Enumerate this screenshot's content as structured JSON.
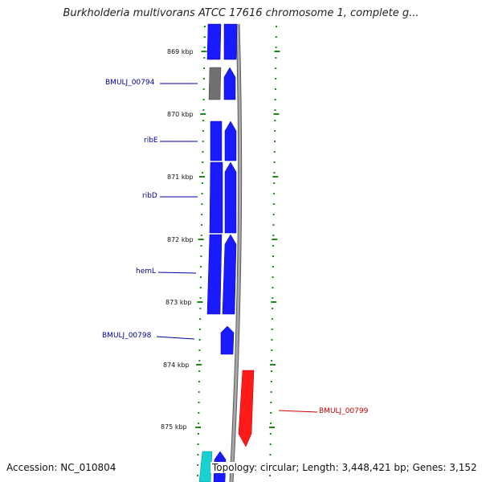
{
  "title": "Burkholderia multivorans ATCC 17616 chromosome 1, complete g...",
  "accession_text": "Accession: NC_010804",
  "summary_text": "Topology: circular; Length: 3,448,421 bp; Genes: 3,152",
  "colors": {
    "forward_gene": "#1a1aff",
    "reverse_gene": "#ff1a1a",
    "pseudo_gene": "#707070",
    "rna_gene": "#19d1d1",
    "forward_label": "#00009c",
    "reverse_label": "#c80000",
    "tick": "#1a8a1a",
    "backbone": "#8c8c8c"
  },
  "scale": {
    "unit": "kbp",
    "ticks": [
      "869 kbp",
      "870 kbp",
      "871 kbp",
      "872 kbp",
      "873 kbp",
      "874 kbp",
      "875 kbp"
    ]
  },
  "genes": [
    {
      "name": "BMULJ_00794",
      "strand": "forward",
      "color_key": "forward_label"
    },
    {
      "name": "ribE",
      "strand": "forward",
      "color_key": "forward_label"
    },
    {
      "name": "ribD",
      "strand": "forward",
      "color_key": "forward_label"
    },
    {
      "name": "hemL",
      "strand": "forward",
      "color_key": "forward_label"
    },
    {
      "name": "BMULJ_00798",
      "strand": "forward",
      "color_key": "forward_label"
    },
    {
      "name": "BMULJ_00799",
      "strand": "reverse",
      "color_key": "reverse_label"
    }
  ]
}
